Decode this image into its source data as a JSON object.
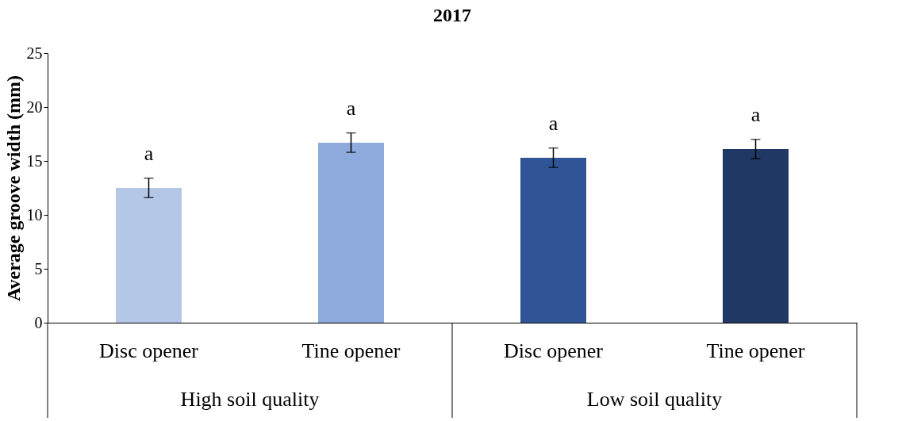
{
  "chart_data": {
    "type": "bar",
    "title": "2017",
    "ylabel": "Average groove width (mm)",
    "categories": [
      "Disc opener",
      "Tine opener",
      "Disc opener",
      "Tine opener"
    ],
    "values": [
      12.5,
      16.7,
      15.3,
      16.1
    ],
    "colors": [
      "#b4c7e7",
      "#8faadc",
      "#2f5597",
      "#203864"
    ],
    "errors": [
      0.9,
      0.9,
      0.9,
      0.9
    ],
    "value_labels": [
      "a",
      "a",
      "a",
      "a"
    ],
    "annotations": [
      "High soil quality",
      "Low soil quality"
    ],
    "ylim": [
      0,
      25
    ],
    "yticks": [
      0,
      5,
      10,
      15,
      20,
      25
    ],
    "grid": false
  }
}
